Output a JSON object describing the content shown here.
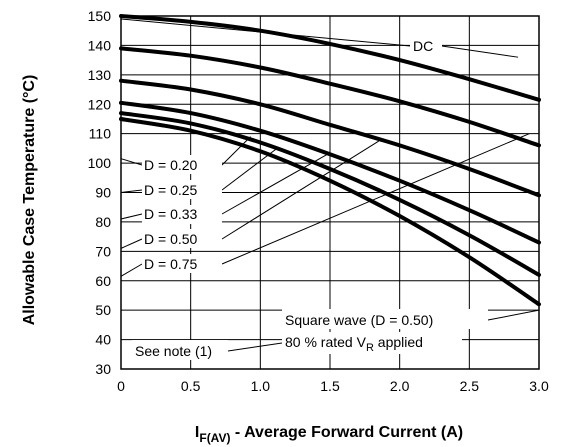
{
  "chart_data": {
    "type": "line",
    "title": "",
    "xlabel": {
      "main": "I",
      "sub": "F(AV)",
      "rest": " - Average Forward Current (A)"
    },
    "ylabel": "Allowable Case Temperature (°C)",
    "xlim": [
      0,
      3
    ],
    "ylim": [
      30,
      150
    ],
    "x_ticks": [
      "0",
      "0.5",
      "1.0",
      "1.5",
      "2.0",
      "2.5",
      "3.0"
    ],
    "y_ticks": [
      "30",
      "40",
      "50",
      "60",
      "70",
      "80",
      "90",
      "100",
      "110",
      "120",
      "130",
      "140",
      "150"
    ],
    "grid": true,
    "series": [
      {
        "name": "DC",
        "x": [
          0,
          0.5,
          1.0,
          1.5,
          2.0,
          2.5,
          3.0
        ],
        "y": [
          150,
          148,
          145,
          140.5,
          135,
          128.5,
          121.5
        ]
      },
      {
        "name": "D = 0.75",
        "x": [
          0,
          0.5,
          1.0,
          1.5,
          2.0,
          2.5,
          3.0
        ],
        "y": [
          139,
          136.5,
          132.5,
          127,
          121,
          114,
          106
        ]
      },
      {
        "name": "D = 0.50",
        "x": [
          0,
          0.5,
          1.0,
          1.5,
          2.0,
          2.5,
          3.0
        ],
        "y": [
          128,
          125,
          120,
          113,
          106,
          98,
          89
        ]
      },
      {
        "name": "D = 0.33",
        "x": [
          0,
          0.5,
          1.0,
          1.5,
          2.0,
          2.5,
          3.0
        ],
        "y": [
          120.5,
          117,
          111,
          103,
          94,
          84,
          73
        ]
      },
      {
        "name": "D = 0.25",
        "x": [
          0,
          0.5,
          1.0,
          1.5,
          2.0,
          2.5,
          3.0
        ],
        "y": [
          117,
          113.5,
          107,
          98,
          87.5,
          75.5,
          62
        ]
      },
      {
        "name": "D = 0.20",
        "x": [
          0,
          0.5,
          1.0,
          1.5,
          2.0,
          2.5,
          3.0
        ],
        "y": [
          115,
          111,
          104,
          94,
          82,
          68,
          52
        ]
      }
    ],
    "annotations": {
      "dc": "DC",
      "d020": "D = 0.20",
      "d025": "D = 0.25",
      "d033": "D = 0.33",
      "d050": "D = 0.50",
      "d075": "D = 0.75",
      "square_wave": "Square wave (D = 0.50)",
      "rated_main": "80 % rated V",
      "rated_sub": "R",
      "rated_rest": " applied",
      "see_note": "See note (1)"
    }
  }
}
